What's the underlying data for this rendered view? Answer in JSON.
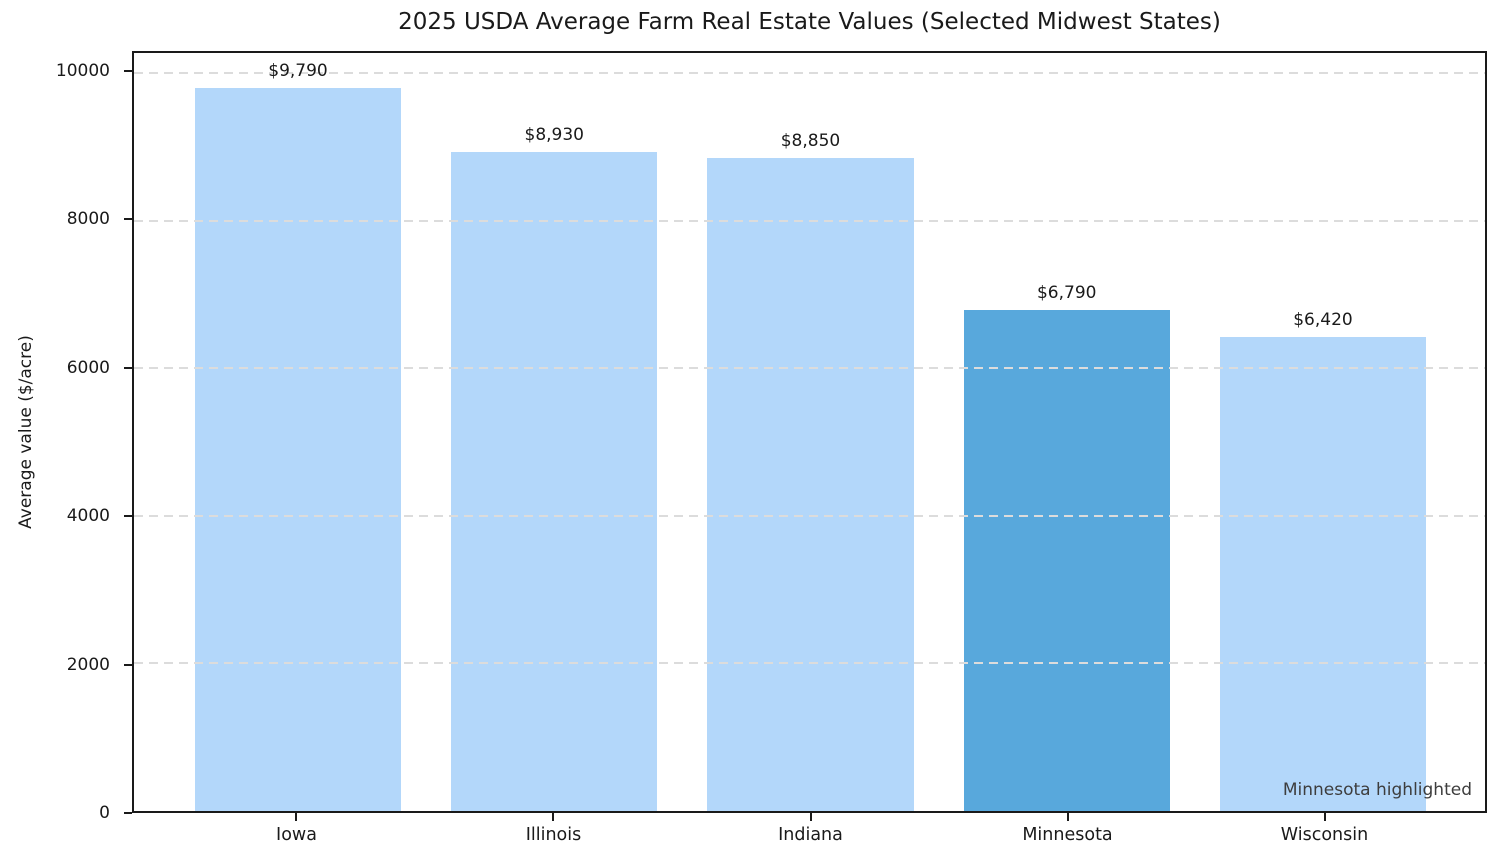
{
  "chart_data": {
    "type": "bar",
    "title": "2025 USDA Average Farm Real Estate Values (Selected Midwest States)",
    "ylabel": "Average value ($/acre)",
    "xlabel": "",
    "categories": [
      "Iowa",
      "Illinois",
      "Indiana",
      "Minnesota",
      "Wisconsin"
    ],
    "values": [
      9790,
      8930,
      8850,
      6790,
      6420
    ],
    "bar_labels": [
      "$9,790",
      "$8,930",
      "$8,850",
      "$6,790",
      "$6,420"
    ],
    "highlighted_category": "Minnesota",
    "annotation": "Minnesota highlighted",
    "yticks": [
      0,
      2000,
      4000,
      6000,
      8000,
      10000
    ],
    "ylim": [
      0,
      10270
    ],
    "grid": "horizontal dashed",
    "legend": "none",
    "colors": {
      "bar_default": "#b3d7fa",
      "bar_highlight": "#58a8dc",
      "grid": "#dcdcdc",
      "axis_text": "#1a1a1a",
      "annotation_text": "#3d3d3d",
      "background": "#ffffff"
    }
  }
}
